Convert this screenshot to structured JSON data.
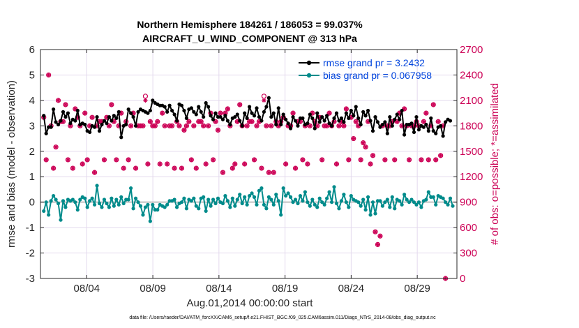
{
  "chart_data": {
    "type": "line",
    "title_line1": "Northern Hemisphere 184261 / 186053 = 99.037%",
    "title_line2": "AIRCRAFT_U_WIND_COMPONENT @ 313 hPa",
    "xlabel": "Aug.01,2014 00:00:00 start",
    "ylabel_left": "rmse and bias (model - observation)",
    "ylabel_right": "# of obs: o=possible; *=assimilated",
    "footer": "data file: /Users/raeder/DAI/ATM_forcXX/CAM6_setup/f.e21.FHIST_BGC.f09_025.CAM6assim.011/Diags_NTrS_2014-08/obs_diag_output.nc",
    "xlim": [
      0,
      31.5
    ],
    "ylim_left": [
      -3,
      6
    ],
    "ylim_right": [
      0,
      2700
    ],
    "x_ticks": [
      {
        "value": 3.5,
        "label": "08/04"
      },
      {
        "value": 8.5,
        "label": "08/09"
      },
      {
        "value": 13.5,
        "label": "08/14"
      },
      {
        "value": 18.5,
        "label": "08/19"
      },
      {
        "value": 23.5,
        "label": "08/24"
      },
      {
        "value": 28.5,
        "label": "08/29"
      }
    ],
    "y_ticks_left": [
      "-3",
      "-2",
      "-1",
      "0",
      "1",
      "2",
      "3",
      "4",
      "5",
      "6"
    ],
    "y_ticks_right": [
      "0",
      "300",
      "600",
      "900",
      "1200",
      "1500",
      "1800",
      "2100",
      "2400",
      "2700"
    ],
    "legend": [
      {
        "label": "rmse grand pr = 3.2432",
        "color": "#000000"
      },
      {
        "label": "bias grand pr = 0.067958",
        "color": "#008b8b"
      }
    ],
    "colors": {
      "rmse": "#000000",
      "bias": "#008b8b",
      "obs": "#cc0055",
      "grid": "#e3d9ed",
      "zero": "#c0c0c0"
    },
    "series": [
      {
        "name": "rmse",
        "values": [
          3.4,
          2.7,
          2.95,
          2.95,
          3.65,
          3.15,
          3.05,
          3.2,
          3.55,
          3.35,
          3.5,
          3.1,
          3.25,
          3.2,
          3.6,
          3.05,
          3.1,
          3.05,
          2.8,
          2.75,
          3.0,
          2.95,
          3.35,
          2.8,
          3.05,
          3.2,
          3.1,
          3.35,
          3.2,
          3.4,
          3.3,
          3.55,
          2.55,
          3.0,
          3.05,
          3.65,
          3.5,
          3.35,
          3.0,
          3.55,
          3.65,
          3.6,
          3.55,
          3.5,
          3.6,
          4.0,
          3.9,
          3.85,
          3.8,
          3.8,
          3.75,
          3.55,
          3.8,
          3.6,
          3.45,
          3.2,
          3.85,
          3.8,
          3.6,
          3.3,
          3.65,
          3.7,
          3.55,
          3.45,
          3.75,
          3.55,
          3.35,
          3.9,
          3.75,
          3.4,
          3.25,
          3.5,
          3.35,
          3.35,
          3.25,
          3.4,
          3.2,
          3.05,
          3.3,
          3.35,
          3.45,
          3.2,
          3.0,
          3.5,
          3.3,
          3.75,
          3.5,
          3.4,
          3.7,
          3.35,
          3.2,
          3.55,
          3.75,
          4.1,
          3.35,
          3.5,
          3.05,
          3.7,
          3.05,
          3.45,
          3.25,
          3.1,
          2.9,
          3.35,
          3.2,
          3.0,
          3.3,
          3.3,
          3.05,
          3.1,
          3.45,
          3.3,
          2.9,
          3.5,
          3.15,
          3.35,
          3.2,
          3.4,
          3.1,
          3.0,
          3.3,
          3.5,
          3.2,
          3.3,
          3.15,
          3.5,
          3.3,
          3.6,
          3.4,
          3.75,
          3.3,
          3.05,
          3.55,
          3.4,
          3.6,
          3.2,
          2.8,
          3.35,
          3.15,
          2.95,
          3.05,
          3.15,
          2.7,
          3.35,
          3.0,
          3.25,
          3.45,
          3.25,
          3.6,
          2.65,
          3.05,
          3.05,
          3.1,
          2.75,
          3.35,
          2.85,
          3.0,
          2.95,
          3.05,
          2.8,
          3.3,
          2.8,
          2.7,
          2.95,
          3.0,
          2.6,
          3.15,
          3.25,
          3.2
        ]
      },
      {
        "name": "bias",
        "values": [
          -0.35,
          0.0,
          -0.5,
          0.05,
          0.25,
          0.1,
          -0.05,
          -0.7,
          0.05,
          -0.2,
          0.1,
          0.05,
          0.1,
          0.0,
          -0.3,
          0.1,
          0.2,
          0.15,
          -0.2,
          0.05,
          0.15,
          -0.1,
          0.65,
          -0.05,
          -0.2,
          0.1,
          -0.05,
          -0.2,
          0.15,
          -0.15,
          0.1,
          -0.1,
          0.2,
          -0.05,
          0.1,
          0.1,
          0.55,
          -0.25,
          0.15,
          0.0,
          -0.15,
          -0.5,
          -0.2,
          -0.1,
          -0.75,
          -0.1,
          -0.3,
          -0.3,
          -0.1,
          -0.15,
          -0.2,
          -0.1,
          0.05,
          0.05,
          0.1,
          -0.2,
          -0.05,
          0.0,
          0.15,
          -0.25,
          0.1,
          0.05,
          0.15,
          -0.15,
          -0.25,
          0.15,
          0.2,
          -0.35,
          0.1,
          -0.15,
          0.1,
          -0.05,
          0.15,
          0.0,
          -0.05,
          0.25,
          0.05,
          -0.2,
          0.15,
          -0.15,
          0.1,
          0.3,
          -0.05,
          0.2,
          -0.1,
          0.25,
          0.35,
          0.2,
          -0.1,
          0.45,
          0.55,
          -0.1,
          -0.25,
          0.2,
          0.1,
          -0.1,
          0.3,
          0.05,
          -0.5,
          0.55,
          0.25,
          0.35,
          0.2,
          0.0,
          0.1,
          -0.05,
          0.25,
          0.05,
          0.4,
          0.0,
          -0.15,
          0.1,
          -0.1,
          -0.2,
          0.15,
          0.0,
          -0.1,
          0.15,
          0.4,
          0.0,
          0.6,
          -0.05,
          -0.25,
          0.05,
          0.3,
          0.0,
          -0.2,
          0.25,
          0.1,
          0.05,
          0.0,
          -0.15,
          0.1,
          -0.3,
          0.2,
          -0.5,
          0.0,
          -0.45,
          0.05,
          0.05,
          -0.15,
          0.0,
          0.1,
          -0.2,
          0.2,
          -0.25,
          0.1,
          0.05,
          -0.1,
          0.3,
          0.1,
          0.0,
          0.1,
          0.0,
          -0.1,
          0.0,
          -0.2,
          0.05,
          0.1,
          0.4,
          0.2,
          0.2,
          -0.1,
          0.25,
          0.2,
          0.15,
          0.0,
          -0.1,
          0.15,
          -0.15
        ]
      },
      {
        "name": "obs_possible",
        "values": [
          1900,
          1400,
          2400,
          1800,
          1300,
          1550,
          2100,
          1850,
          1850,
          2050,
          1400,
          1800,
          1300,
          2000,
          1900,
          1800,
          1350,
          1950,
          1400,
          1800,
          1900,
          1250,
          1800,
          1850,
          1850,
          1400,
          1900,
          1800,
          2050,
          1850,
          1400,
          1800,
          1950,
          1300,
          1850,
          1400,
          1800,
          1950,
          1300,
          1800,
          1800,
          1800,
          2150,
          1350,
          1850,
          1800,
          1800,
          1850,
          1350,
          1950,
          1800,
          1350,
          1800,
          1800,
          1300,
          1850,
          1800,
          1300,
          1750,
          1800,
          1850,
          1400,
          1800,
          1300,
          1850,
          1850,
          1800,
          1350,
          1800,
          1950,
          1400,
          1850,
          1750,
          1950,
          1250,
          1950,
          2000,
          1800,
          1300,
          1350,
          1850,
          2050,
          1800,
          1350,
          1800,
          1850,
          1850,
          1400,
          1800,
          1850,
          1300,
          2150,
          1800,
          1250,
          1800,
          1250,
          1850,
          1800,
          1850,
          1900,
          1350,
          1800,
          1800,
          1950,
          1300,
          1850,
          1850,
          1400,
          1800,
          1350,
          1800,
          1950,
          1850,
          1800,
          1900,
          1400,
          1800,
          1800,
          1950,
          1800,
          1850,
          1350,
          1800,
          1850,
          1800,
          2000,
          1400,
          1900,
          1650,
          1850,
          1800,
          1400,
          1600,
          1550,
          1850,
          1350,
          1450,
          550,
          400,
          500,
          1800,
          1400,
          1800,
          1800,
          1850,
          1400,
          1850,
          1950,
          1800,
          2000,
          1800,
          1400,
          1800,
          1800,
          1850,
          1800,
          1400,
          1850,
          1950,
          1400,
          1800,
          2050,
          1400,
          1850,
          1450,
          1800,
          0
        ]
      },
      {
        "name": "obs_assimilated",
        "values": [
          1900,
          1400,
          2400,
          1800,
          1300,
          1550,
          2100,
          1850,
          1850,
          2050,
          1400,
          1800,
          1300,
          2000,
          1900,
          1800,
          1350,
          1950,
          1400,
          1800,
          1900,
          1250,
          1800,
          1850,
          1850,
          1400,
          1900,
          1800,
          2050,
          1850,
          1400,
          1800,
          1950,
          1300,
          1850,
          1400,
          1800,
          1950,
          1300,
          1800,
          1800,
          1800,
          2100,
          1350,
          1850,
          1800,
          1800,
          1850,
          1350,
          1950,
          1800,
          1350,
          1800,
          1800,
          1300,
          1850,
          1800,
          1300,
          1750,
          1800,
          1850,
          1400,
          1800,
          1300,
          1850,
          1850,
          1800,
          1350,
          1800,
          1950,
          1400,
          1850,
          1750,
          1950,
          1250,
          1950,
          2000,
          1800,
          1300,
          1350,
          1850,
          2050,
          1800,
          1350,
          1800,
          1850,
          1850,
          1400,
          1800,
          1850,
          1300,
          2100,
          1800,
          1250,
          1800,
          1250,
          1850,
          1800,
          1850,
          1900,
          1350,
          1800,
          1800,
          1950,
          1300,
          1850,
          1850,
          1400,
          1800,
          1350,
          1800,
          1950,
          1850,
          1800,
          1900,
          1400,
          1800,
          1800,
          1950,
          1800,
          1850,
          1350,
          1800,
          1850,
          1800,
          2000,
          1400,
          1900,
          1650,
          1850,
          1800,
          1400,
          1600,
          1550,
          1850,
          1350,
          1450,
          550,
          400,
          500,
          1800,
          1400,
          1800,
          1800,
          1850,
          1400,
          1850,
          1950,
          1800,
          2000,
          1800,
          1400,
          1800,
          1800,
          1850,
          1800,
          1400,
          1850,
          1950,
          1400,
          1800,
          2050,
          1400,
          1850,
          1450,
          1800,
          0
        ]
      }
    ]
  }
}
